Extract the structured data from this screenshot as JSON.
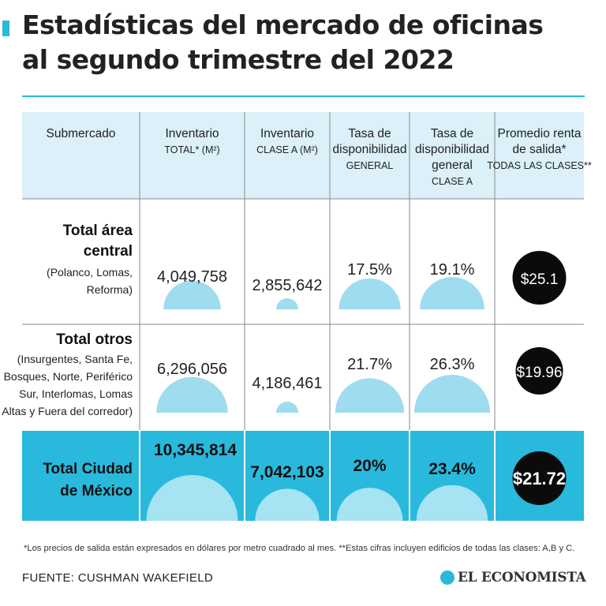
{
  "header": {
    "title_line1": "Estadísticas del mercado de oficinas",
    "title_line2": "al segundo trimestre del 2022",
    "accent_color": "#29b9dc"
  },
  "chart_data": {
    "type": "table",
    "columns": [
      {
        "lines": [
          "Submercado"
        ],
        "sub": []
      },
      {
        "lines": [
          "Inventario"
        ],
        "sub": [
          "TOTAL* (M²)"
        ]
      },
      {
        "lines": [
          "Inventario"
        ],
        "sub": [
          "CLASE A (M²)"
        ]
      },
      {
        "lines": [
          "Tasa de",
          "disponibilidad"
        ],
        "sub": [
          "GENERAL"
        ]
      },
      {
        "lines": [
          "Tasa de",
          "disponibilidad",
          "general"
        ],
        "sub": [
          "CLASE A"
        ]
      },
      {
        "lines": [
          "Promedio renta",
          "de salida*"
        ],
        "sub": [
          "TODAS LAS CLASES**"
        ]
      }
    ],
    "rows": [
      {
        "label": [
          "Total área",
          "central"
        ],
        "detail": [
          "(Polanco, Lomas,",
          "Reforma)"
        ],
        "inventario_total": 4049758,
        "inventario_total_text": "4,049,758",
        "inventario_clase_a": 2855642,
        "inventario_clase_a_text": "2,855,642",
        "tasa_general": 17.5,
        "tasa_general_text": "17.5%",
        "tasa_clase_a": 19.1,
        "tasa_clase_a_text": "19.1%",
        "renta_text": "$25.1"
      },
      {
        "label": [
          "Total otros"
        ],
        "detail": [
          "(Insurgentes, Santa Fe,",
          "Bosques, Norte, Periférico",
          "Sur, Interlomas, Lomas",
          "Altas y Fuera del corredor)"
        ],
        "inventario_total": 6296056,
        "inventario_total_text": "6,296,056",
        "inventario_clase_a": 4186461,
        "inventario_clase_a_text": "4,186,461",
        "tasa_general": 21.7,
        "tasa_general_text": "21.7%",
        "tasa_clase_a": 26.3,
        "tasa_clase_a_text": "26.3%",
        "renta_text": "$19.96"
      },
      {
        "label": [
          "Total Ciudad",
          "de México"
        ],
        "detail": [],
        "inventario_total": 10345814,
        "inventario_total_text": "10,345,814",
        "inventario_clase_a": 7042103,
        "inventario_clase_a_text": "7,042,103",
        "tasa_general": 20,
        "tasa_general_text": "20%",
        "tasa_clase_a": 23.4,
        "tasa_clase_a_text": "23.4%",
        "renta_text": "$21.72",
        "highlight": true
      }
    ],
    "colors": {
      "header_bg": "#dbf0f8",
      "highlight_bg": "#29b9dc",
      "bubble": "#9fdcef",
      "bubble_highlight": "#a6e3f3",
      "circle": "#0b0b0b"
    }
  },
  "footnote": "*Los precios de salida están expresados en dólares por metro cuadrado al mes. **Estas cifras incluyen edificios de todas las clases: A,B y C.",
  "source": "FUENTE: CUSHMAN WAKEFIELD",
  "brand": {
    "name": "EL ECONOMISTA",
    "logo_icon": "e-logo-icon"
  }
}
